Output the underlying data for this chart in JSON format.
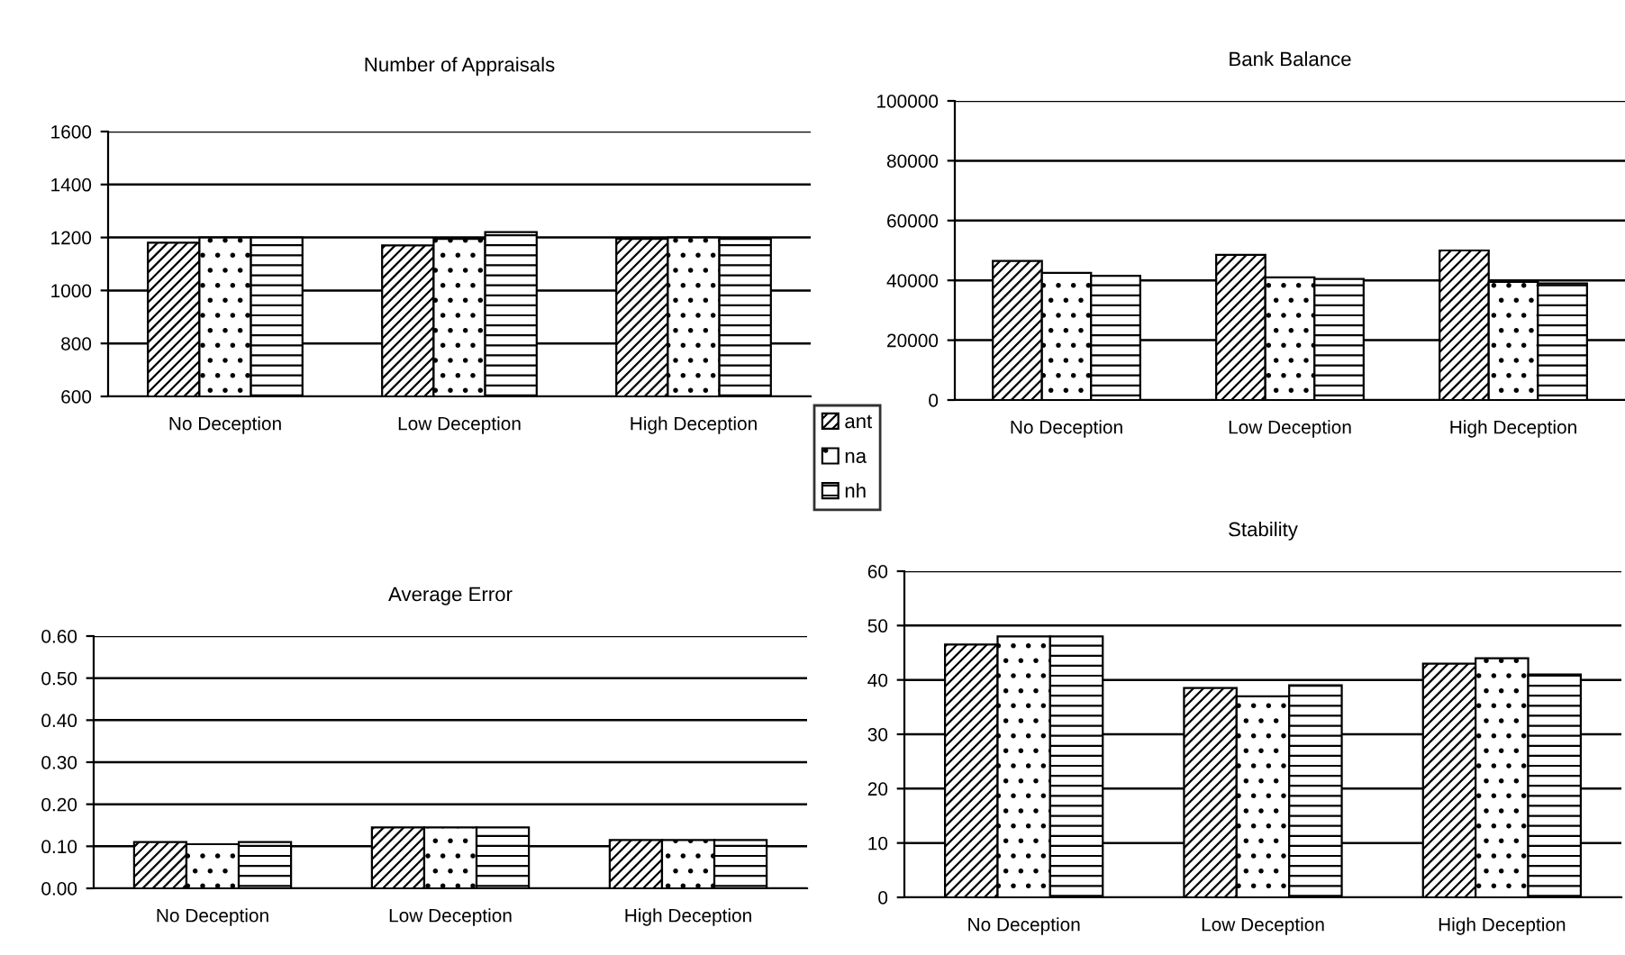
{
  "chart_data": [
    {
      "type": "bar",
      "title": "Number of Appraisals",
      "categories": [
        "No Deception",
        "Low Deception",
        "High Deception"
      ],
      "series": [
        {
          "name": "ant",
          "color": "#000000",
          "values": [
            1180,
            1170,
            1195
          ]
        },
        {
          "name": "na",
          "color": "#000000",
          "values": [
            1200,
            1195,
            1200
          ]
        },
        {
          "name": "nh",
          "color": "#000000",
          "values": [
            1200,
            1220,
            1195
          ]
        }
      ],
      "ylim": [
        600,
        1600
      ],
      "yticks": [
        600,
        800,
        1000,
        1200,
        1400,
        1600
      ],
      "grid": "y",
      "legend": "right"
    },
    {
      "type": "bar",
      "title": "Bank Balance",
      "categories": [
        "No Deception",
        "Low Deception",
        "High Deception"
      ],
      "series": [
        {
          "color": "#000000",
          "values": [
            46500,
            48500,
            50000
          ]
        },
        {
          "color": "#000000",
          "values": [
            42500,
            41000,
            39500
          ]
        },
        {
          "color": "#000000",
          "values": [
            41500,
            40500,
            39000
          ]
        }
      ],
      "ylim": [
        0,
        100000
      ],
      "yticks": [
        0,
        20000,
        40000,
        60000,
        80000,
        100000
      ],
      "grid": "y"
    },
    {
      "type": "bar",
      "title": "Average Error",
      "categories": [
        "No Deception",
        "Low Deception",
        "High Deception"
      ],
      "series": [
        {
          "color": "#000000",
          "values": [
            0.11,
            0.145,
            0.115
          ]
        },
        {
          "color": "#000000",
          "values": [
            0.105,
            0.145,
            0.115
          ]
        },
        {
          "color": "#000000",
          "values": [
            0.11,
            0.145,
            0.115
          ]
        }
      ],
      "ylim": [
        0,
        0.6
      ],
      "yticks": [
        {
          "value": 0,
          "label": "0.00"
        },
        {
          "value": 0.1,
          "label": "0.10"
        },
        {
          "value": 0.2,
          "label": "0.20"
        },
        {
          "value": 0.3,
          "label": "0.30"
        },
        {
          "value": 0.4,
          "label": "0.40"
        },
        {
          "value": 0.5,
          "label": "0.50"
        },
        {
          "value": 0.6,
          "label": "0.60"
        }
      ],
      "grid": "y"
    },
    {
      "type": "bar",
      "title": "Stability",
      "categories": [
        "No Deception",
        "Low Deception",
        "High Deception"
      ],
      "series": [
        {
          "color": "#000000",
          "values": [
            46.5,
            38.5,
            43
          ]
        },
        {
          "color": "#000000",
          "values": [
            48,
            37,
            44
          ]
        },
        {
          "color": "#000000",
          "values": [
            48,
            39,
            41
          ]
        }
      ],
      "ylim": [
        0,
        60
      ],
      "yticks": [
        0,
        10,
        20,
        30,
        40,
        50,
        60
      ],
      "grid": "y"
    }
  ]
}
